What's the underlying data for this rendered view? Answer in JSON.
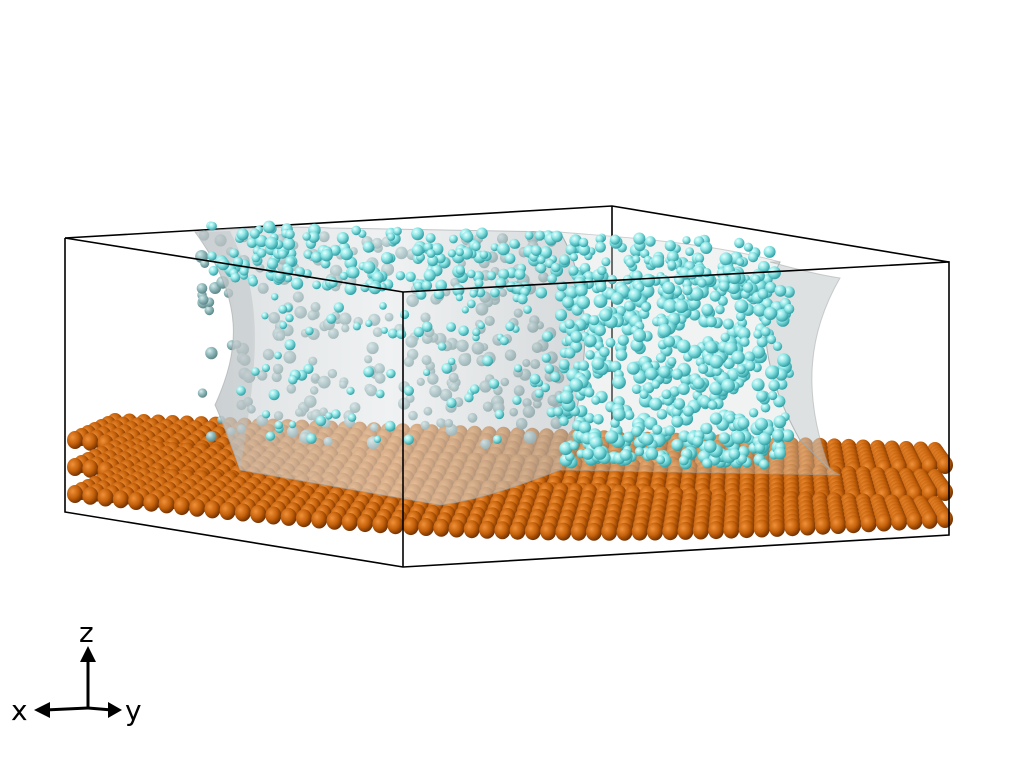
{
  "scene": {
    "description_free": true,
    "colors": {
      "background": "#ffffff",
      "box_edge": "#000000",
      "substrate_atom": "#c4600a",
      "substrate_atom_dark": "#6b2e02",
      "liquid_atom": "#8fe6e6",
      "liquid_atom_dark": "#2f9ea3",
      "interface_surface": "#c8cdd0"
    },
    "substrate_layers": 3
  },
  "axes": {
    "x_label": "x",
    "y_label": "y",
    "z_label": "z"
  }
}
